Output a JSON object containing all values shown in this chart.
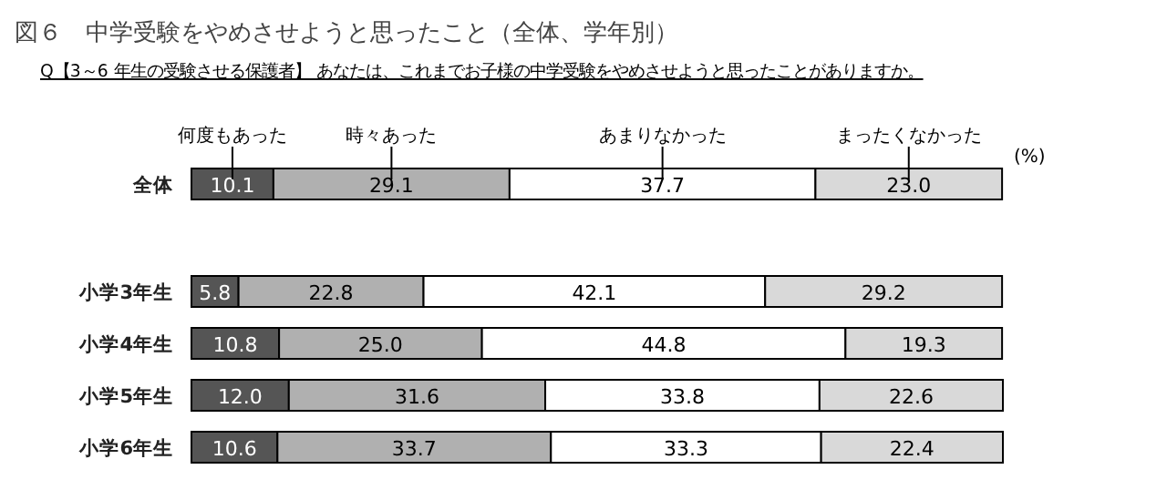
{
  "chart_data": {
    "type": "bar",
    "orientation": "horizontal",
    "stacked": true,
    "legend": "top",
    "title": "図６　中学受験をやめさせようと思ったこと（全体、学年別）",
    "subtitle": "Q【3～6 年生の受験させる保護者】 あなたは、これまでお子様の中学受験をやめさせようと思ったことがありますか。",
    "annotations": [
      "(%)"
    ],
    "categories": [
      "全体",
      "小学3年生",
      "小学4年生",
      "小学5年生",
      "小学6年生"
    ],
    "series": [
      {
        "name": "何度もあった",
        "color": "#555555",
        "values": [
          10.1,
          5.8,
          10.8,
          12.0,
          10.6
        ],
        "value_labels": [
          "10.1",
          "5.8",
          "10.8",
          "12.0",
          "10.6"
        ]
      },
      {
        "name": "時々あった",
        "color": "#b0b0b0",
        "values": [
          29.1,
          22.8,
          25.0,
          31.6,
          33.7
        ],
        "value_labels": [
          "29.1",
          "22.8",
          "25.0",
          "31.6",
          "33.7"
        ]
      },
      {
        "name": "あまりなかった",
        "color": "#ffffff",
        "values": [
          37.7,
          42.1,
          44.8,
          33.8,
          33.3
        ],
        "value_labels": [
          "37.7",
          "42.1",
          "44.8",
          "33.8",
          "33.3"
        ]
      },
      {
        "name": "まったくなかった",
        "color": "#d9d9d9",
        "values": [
          23.0,
          29.2,
          19.3,
          22.6,
          22.4
        ],
        "value_labels": [
          "23.0",
          "29.2",
          "19.3",
          "22.6",
          "22.4"
        ]
      }
    ]
  }
}
